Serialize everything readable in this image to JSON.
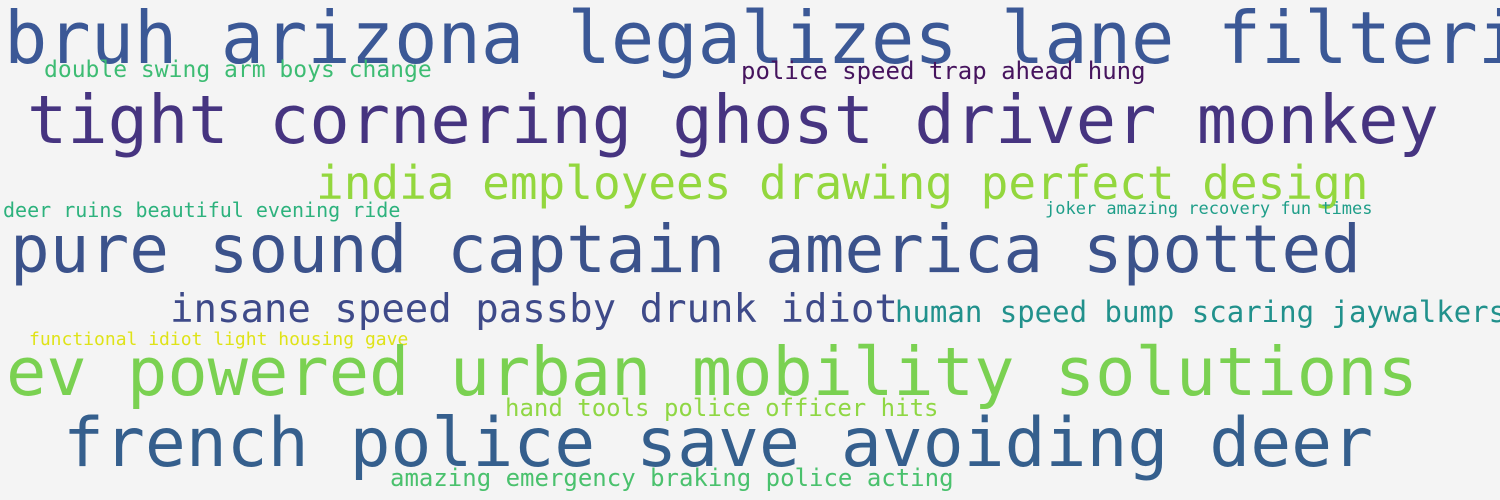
{
  "background": "#f4f4f4",
  "phrases": [
    {
      "text": "bruh arizona legalizes lane filtering",
      "color": "#3b5896"
    },
    {
      "text": "double swing arm boys change",
      "color": "#3dbc73"
    },
    {
      "text": "police speed trap ahead hung",
      "color": "#46145e"
    },
    {
      "text": "tight cornering ghost driver monkey",
      "color": "#463480"
    },
    {
      "text": "india employees drawing perfect design",
      "color": "#93d73e"
    },
    {
      "text": "deer ruins beautiful evening ride",
      "color": "#2db27d"
    },
    {
      "text": "joker amazing recovery fun times",
      "color": "#1f9e89"
    },
    {
      "text": "pure sound captain america spotted",
      "color": "#3b528b"
    },
    {
      "text": "insane speed passby drunk idiot",
      "color": "#3e4a89"
    },
    {
      "text": "human speed bump scaring jaywalkers",
      "color": "#21918c"
    },
    {
      "text": "functional idiot light housing gave",
      "color": "#dfe318"
    },
    {
      "text": "ev powered urban mobility solutions",
      "color": "#7ad151"
    },
    {
      "text": "hand tools police officer hits",
      "color": "#8fd744"
    },
    {
      "text": "french police save avoiding deer",
      "color": "#355f8d"
    },
    {
      "text": "amazing emergency braking police acting",
      "color": "#4ac16d"
    }
  ]
}
